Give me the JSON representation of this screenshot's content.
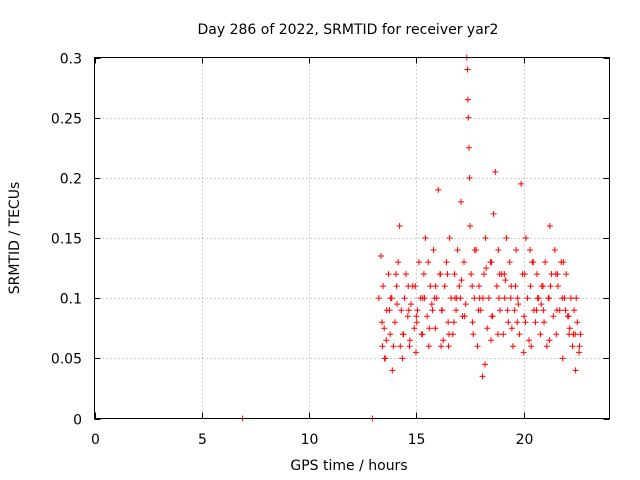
{
  "chart_data": {
    "type": "scatter",
    "title": "Day 286 of 2022, SRMTID for receiver yar2",
    "xlabel": "GPS time / hours",
    "ylabel": "SRMTID / TECUs",
    "xlim": [
      0,
      24
    ],
    "ylim": [
      0,
      0.3
    ],
    "xticks": [
      0,
      5,
      10,
      15,
      20
    ],
    "xtick_labels": [
      "0",
      "5",
      "10",
      "15",
      "20"
    ],
    "yticks": [
      0,
      0.05,
      0.1,
      0.15,
      0.2,
      0.25,
      0.3
    ],
    "ytick_labels": [
      "0",
      "0.05",
      "0.1",
      "0.15",
      "0.2",
      "0.25",
      "0.3"
    ],
    "grid": true,
    "marker": "+",
    "color": "#ff0000",
    "series": [
      {
        "name": "yar2",
        "x": [
          6.9,
          12.95,
          13.25,
          13.35,
          13.42,
          13.5,
          13.55,
          13.62,
          13.7,
          13.78,
          13.85,
          13.93,
          14.0,
          14.08,
          14.15,
          14.22,
          14.3,
          14.38,
          14.45,
          14.52,
          14.6,
          14.68,
          14.75,
          14.83,
          14.9,
          14.98,
          15.05,
          15.12,
          15.2,
          15.28,
          15.35,
          15.42,
          15.5,
          15.58,
          15.65,
          15.72,
          15.8,
          15.88,
          15.95,
          16.02,
          16.1,
          16.18,
          16.25,
          16.32,
          16.4,
          16.48,
          16.55,
          16.62,
          16.7,
          16.78,
          16.85,
          16.92,
          17.0,
          17.08,
          17.15,
          17.22,
          17.3,
          17.35,
          17.38,
          17.4,
          17.42,
          17.45,
          17.48,
          17.5,
          17.55,
          17.62,
          17.7,
          17.78,
          17.85,
          17.92,
          18.0,
          18.08,
          18.15,
          18.22,
          18.3,
          18.38,
          18.45,
          18.52,
          18.6,
          18.68,
          18.75,
          18.82,
          18.9,
          18.98,
          19.05,
          19.12,
          19.2,
          19.28,
          19.35,
          19.42,
          19.5,
          19.58,
          19.65,
          19.72,
          19.8,
          19.88,
          19.95,
          20.02,
          20.1,
          20.18,
          20.25,
          20.32,
          20.4,
          20.48,
          20.55,
          20.62,
          20.7,
          20.78,
          20.85,
          20.92,
          21.0,
          21.08,
          21.15,
          21.22,
          21.3,
          21.38,
          21.45,
          21.52,
          21.6,
          21.68,
          21.75,
          21.82,
          21.9,
          21.98,
          22.05,
          22.12,
          22.2,
          22.28,
          22.35,
          22.42,
          22.5,
          22.58,
          22.65,
          13.4,
          13.6,
          13.8,
          14.05,
          14.35,
          14.65,
          14.95,
          15.25,
          15.55,
          15.85,
          16.15,
          16.45,
          16.75,
          17.05,
          17.6,
          17.9,
          18.2,
          18.5,
          18.8,
          19.1,
          19.4,
          19.7,
          20.0,
          20.3,
          20.6,
          20.9,
          21.2,
          21.5,
          21.8,
          22.1,
          22.4,
          13.45,
          13.75,
          14.1,
          14.4,
          14.7,
          15.0,
          15.3,
          15.6,
          15.9,
          16.2,
          16.5,
          16.8,
          17.1,
          17.65,
          17.95,
          18.25,
          18.55,
          18.85,
          19.15,
          19.45,
          19.75,
          20.05,
          20.35,
          20.65,
          20.95,
          21.25,
          21.55,
          21.85,
          22.15,
          22.45,
          13.52,
          13.88,
          14.25,
          14.62,
          15.02,
          15.38,
          15.75,
          16.12,
          16.52,
          16.88,
          17.25,
          17.72,
          18.1,
          18.48,
          18.88,
          19.25,
          19.62,
          20.08,
          20.45,
          20.82,
          21.18,
          21.58,
          21.95,
          22.32,
          22.6
        ],
        "values": [
          0.0,
          0.0,
          0.1,
          0.135,
          0.06,
          0.075,
          0.05,
          0.09,
          0.12,
          0.07,
          0.1,
          0.06,
          0.08,
          0.11,
          0.13,
          0.16,
          0.09,
          0.07,
          0.1,
          0.12,
          0.085,
          0.06,
          0.095,
          0.11,
          0.075,
          0.055,
          0.09,
          0.13,
          0.1,
          0.07,
          0.12,
          0.15,
          0.085,
          0.06,
          0.11,
          0.095,
          0.14,
          0.075,
          0.1,
          0.19,
          0.12,
          0.09,
          0.065,
          0.11,
          0.13,
          0.08,
          0.15,
          0.1,
          0.07,
          0.12,
          0.09,
          0.14,
          0.11,
          0.18,
          0.085,
          0.13,
          0.095,
          0.3,
          0.29,
          0.265,
          0.25,
          0.225,
          0.2,
          0.16,
          0.12,
          0.08,
          0.1,
          0.14,
          0.06,
          0.11,
          0.09,
          0.035,
          0.12,
          0.15,
          0.075,
          0.1,
          0.13,
          0.085,
          0.17,
          0.205,
          0.11,
          0.14,
          0.09,
          0.12,
          0.07,
          0.1,
          0.15,
          0.08,
          0.13,
          0.11,
          0.06,
          0.09,
          0.14,
          0.1,
          0.07,
          0.195,
          0.12,
          0.085,
          0.15,
          0.1,
          0.065,
          0.11,
          0.13,
          0.09,
          0.08,
          0.12,
          0.1,
          0.07,
          0.11,
          0.09,
          0.13,
          0.06,
          0.1,
          0.16,
          0.12,
          0.085,
          0.14,
          0.07,
          0.11,
          0.09,
          0.13,
          0.05,
          0.1,
          0.12,
          0.085,
          0.07,
          0.1,
          0.06,
          0.09,
          0.04,
          0.08,
          0.055,
          0.07,
          0.08,
          0.065,
          0.1,
          0.12,
          0.05,
          0.09,
          0.11,
          0.07,
          0.13,
          0.1,
          0.06,
          0.12,
          0.08,
          0.1,
          0.11,
          0.09,
          0.045,
          0.13,
          0.07,
          0.12,
          0.1,
          0.08,
          0.055,
          0.14,
          0.09,
          0.11,
          0.065,
          0.12,
          0.1,
          0.085,
          0.07,
          0.11,
          0.09,
          0.095,
          0.07,
          0.065,
          0.085,
          0.1,
          0.075,
          0.11,
          0.09,
          0.06,
          0.1,
          0.115,
          0.07,
          0.1,
          0.125,
          0.085,
          0.1,
          0.115,
          0.075,
          0.095,
          0.12,
          0.06,
          0.1,
          0.08,
          0.11,
          0.09,
          0.13,
          0.075,
          0.1,
          0.05,
          0.04,
          0.06,
          0.11,
          0.08,
          0.1,
          0.09,
          0.12,
          0.07,
          0.1,
          0.085,
          0.14,
          0.1,
          0.065,
          0.12,
          0.09,
          0.11,
          0.08,
          0.13,
          0.095,
          0.1,
          0.12,
          0.09,
          0.07,
          0.06
        ]
      }
    ]
  }
}
